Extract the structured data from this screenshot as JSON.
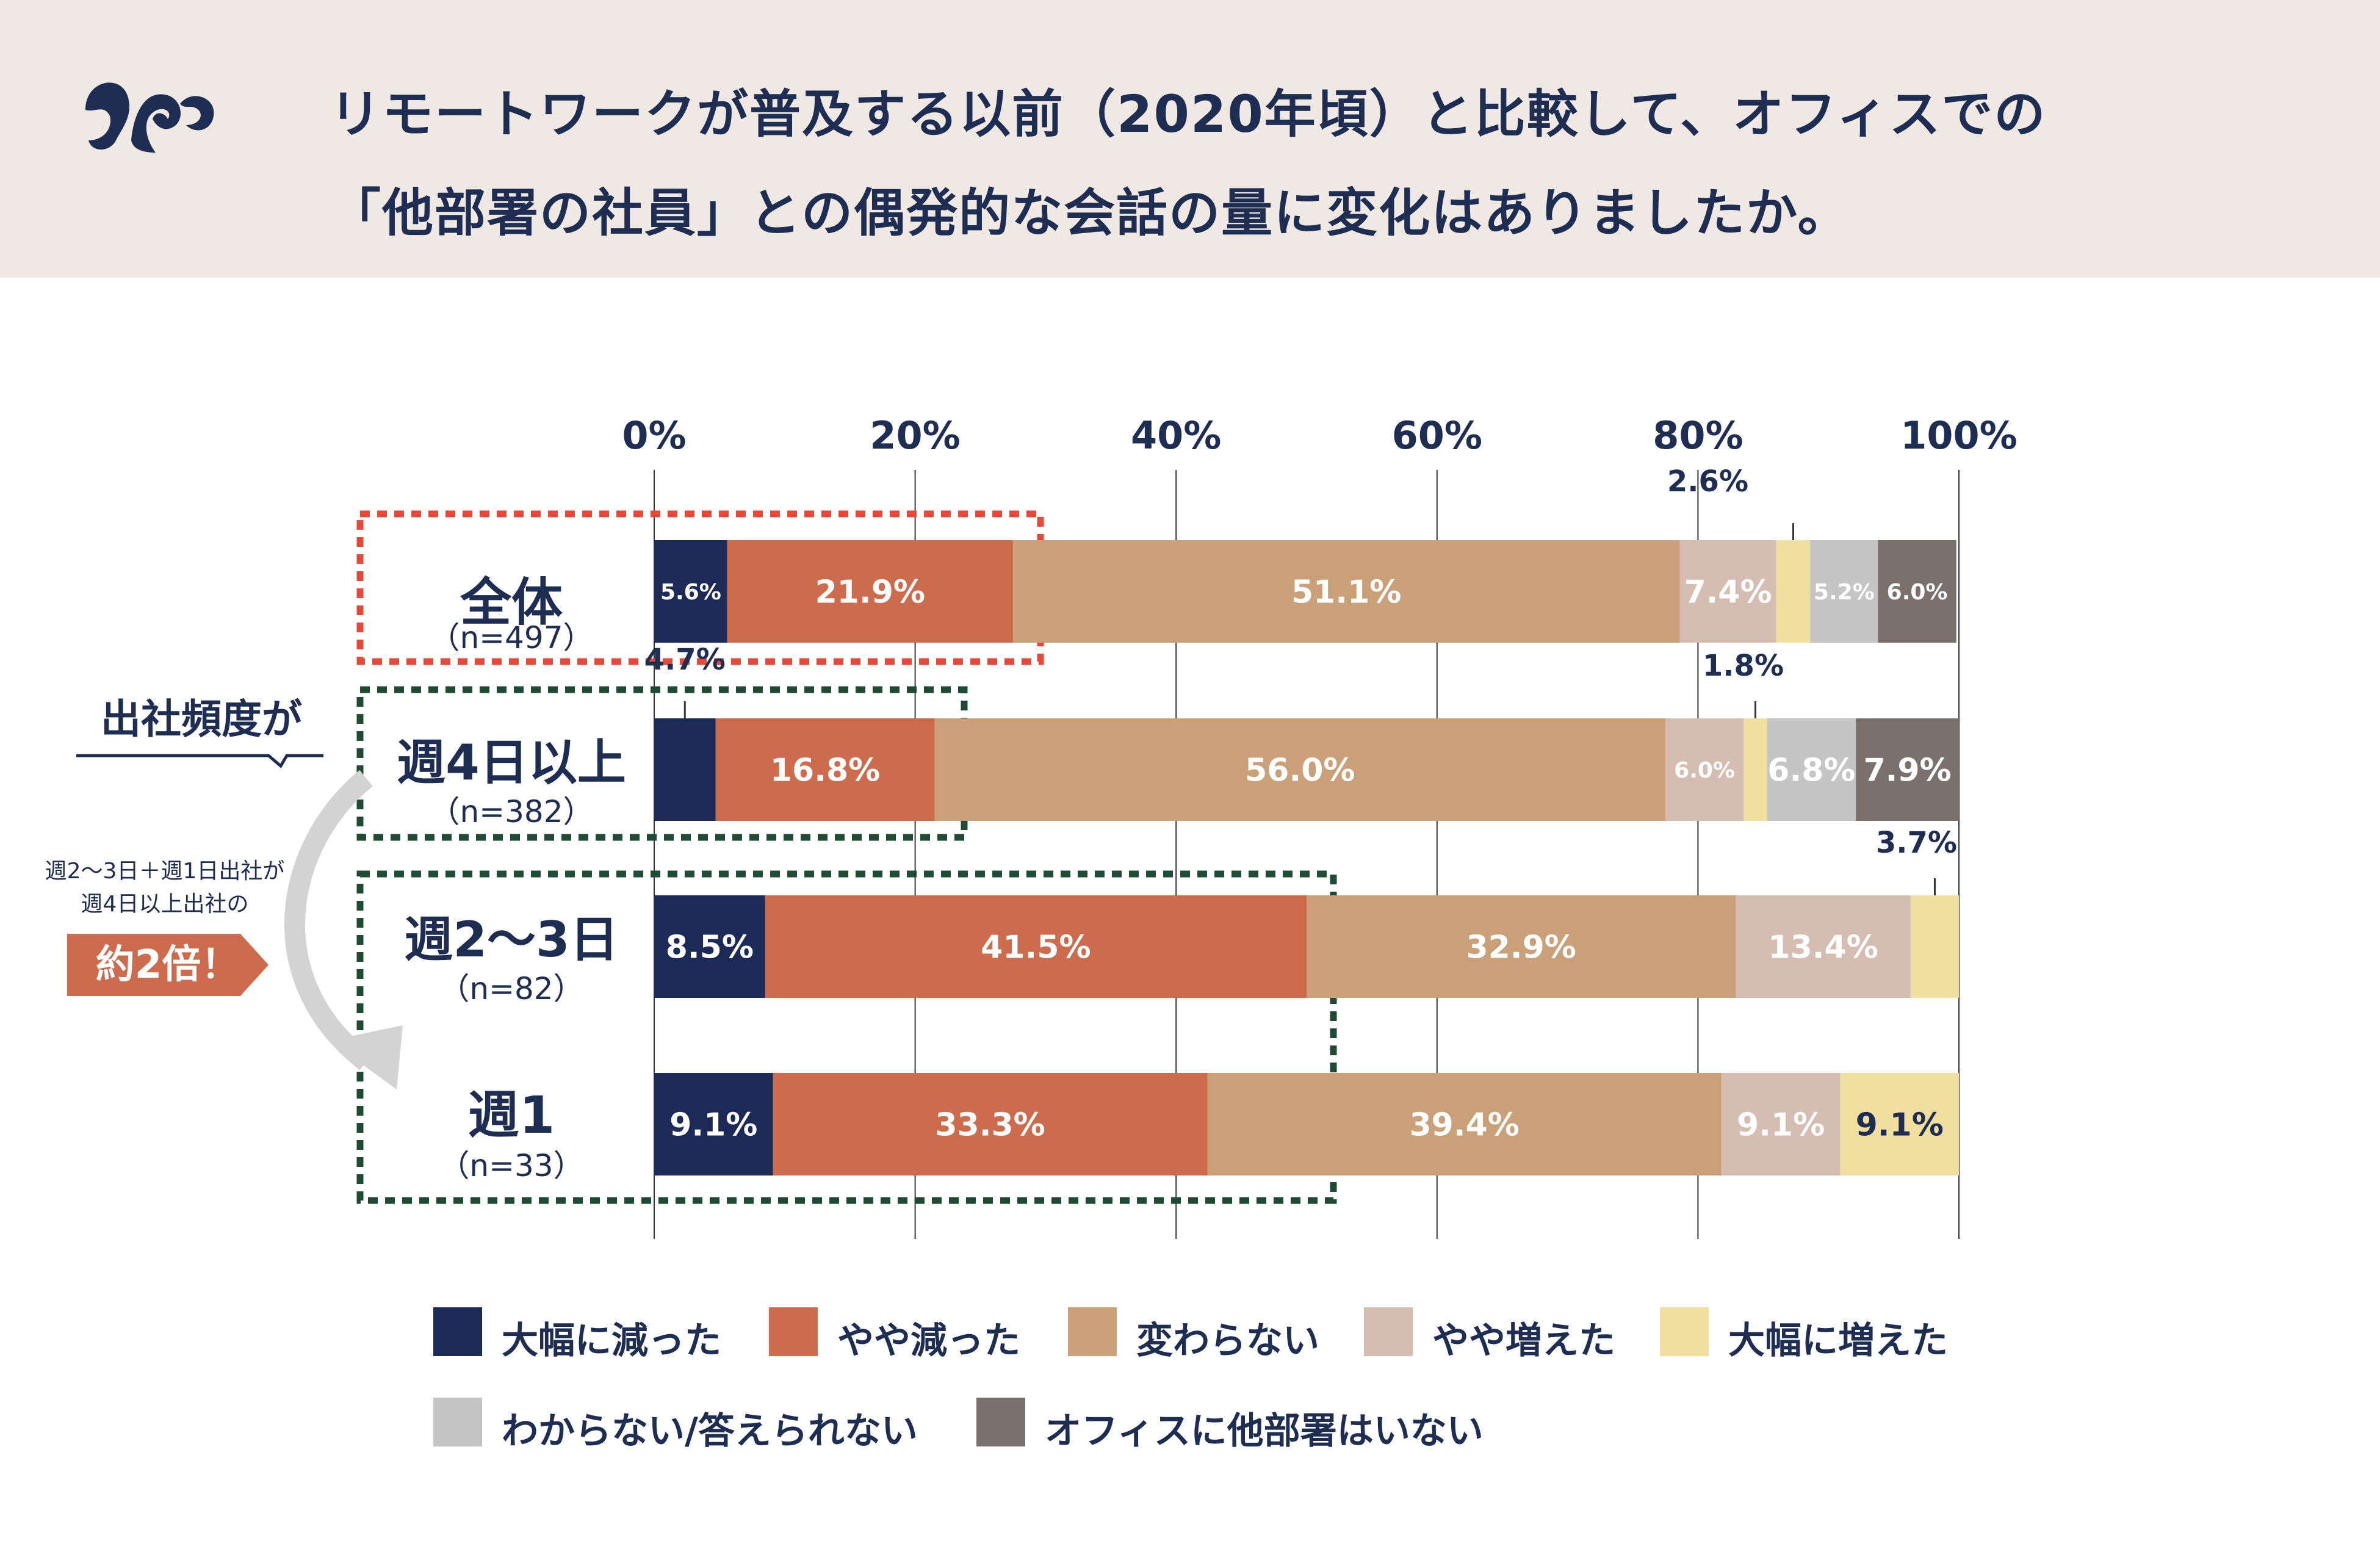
{
  "header": {
    "title_line1": "リモートワークが普及する以前（2020年頃）と比較して、オフィスでの",
    "title_line2": "「他部署の社員」との偶発的な会話の量に変化はありましたか。",
    "logo": "squirrel-tail-logo",
    "background_color": "#f0e8e3"
  },
  "side_annotation": {
    "frequency_label": "出社頻度が",
    "note_line1": "週2〜3日＋週1日出社が",
    "note_line2": "週4日以上出社の",
    "badge_text": "約2倍！",
    "badge_color": "#cc6b4e",
    "arrow_color": "#d3d3d3"
  },
  "chart_data": {
    "type": "bar",
    "orientation": "horizontal",
    "stacked": true,
    "xlim": [
      0,
      100
    ],
    "x_ticks": [
      "0%",
      "20%",
      "40%",
      "60%",
      "80%",
      "100%"
    ],
    "grid": true,
    "categories": [
      {
        "name": "全体",
        "n": "（n=497）",
        "highlight": "#e5493a"
      },
      {
        "name": "週4日以上",
        "n": "（n=382）",
        "highlight": "#1f4a33"
      },
      {
        "name": "週2〜3日",
        "n": "（n=82）",
        "highlight": "#1f4a33"
      },
      {
        "name": "週1",
        "n": "（n=33）",
        "highlight": "#1f4a33"
      }
    ],
    "series": [
      {
        "name": "大幅に減った",
        "color": "#1b2a56",
        "values": [
          5.6,
          4.7,
          8.5,
          9.1
        ],
        "labels": [
          "5.6%",
          "4.7%",
          "8.5%",
          "9.1%"
        ]
      },
      {
        "name": "やや減った",
        "color": "#cd6b4d",
        "values": [
          21.9,
          16.8,
          41.5,
          33.3
        ],
        "labels": [
          "21.9%",
          "16.8%",
          "41.5%",
          "33.3%"
        ]
      },
      {
        "name": "変わらない",
        "color": "#c9a077",
        "values": [
          51.1,
          56.0,
          32.9,
          39.4
        ],
        "labels": [
          "51.1%",
          "56.0%",
          "32.9%",
          "39.4%"
        ]
      },
      {
        "name": "やや増えた",
        "color": "#d6bdb1",
        "values": [
          7.4,
          6.0,
          13.4,
          9.1
        ],
        "labels": [
          "7.4%",
          "6.0%",
          "13.4%",
          "9.1%"
        ]
      },
      {
        "name": "大幅に増えた",
        "color": "#f1df9f",
        "values": [
          2.6,
          1.8,
          3.7,
          9.1
        ],
        "labels": [
          "2.6%",
          "1.8%",
          "3.7%",
          "9.1%"
        ]
      },
      {
        "name": "わからない/答えられない",
        "color": "#c5c5c5",
        "values": [
          5.2,
          6.8,
          0,
          0
        ],
        "labels": [
          "5.2%",
          "6.8%",
          "",
          ""
        ]
      },
      {
        "name": "オフィスに他部署はいない",
        "color": "#7a716c",
        "values": [
          6.0,
          7.9,
          0,
          0
        ],
        "labels": [
          "6.0%",
          "7.9%",
          "",
          ""
        ]
      }
    ],
    "legend_position": "bottom"
  }
}
